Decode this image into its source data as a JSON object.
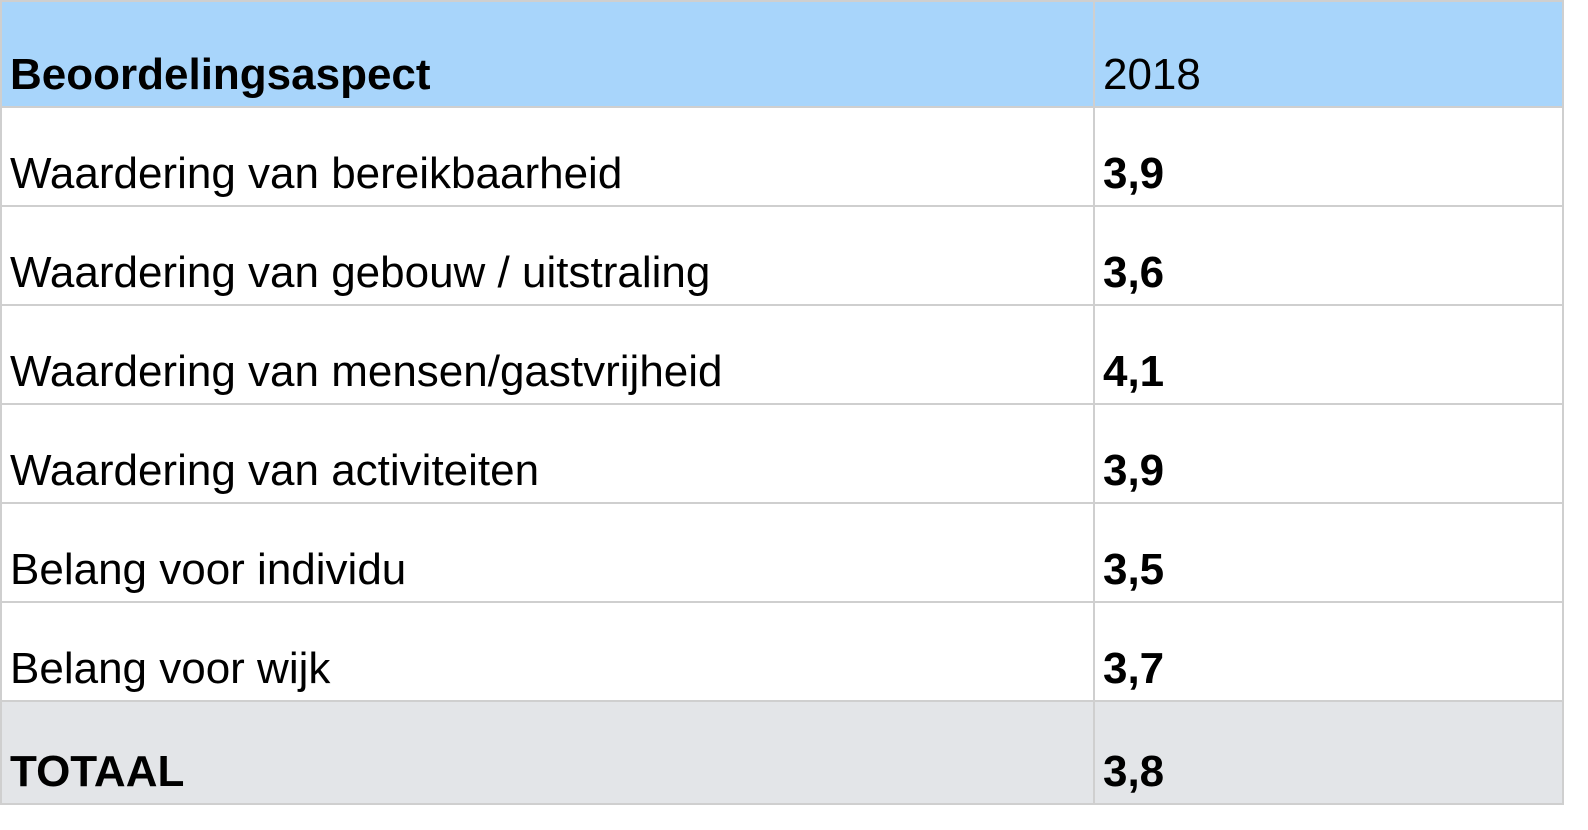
{
  "table": {
    "header": {
      "label": "Beoordelingsaspect",
      "value": "2018"
    },
    "rows": [
      {
        "label": "Waardering van bereikbaarheid",
        "value": "3,9"
      },
      {
        "label": "Waardering van gebouw / uitstraling",
        "value": "3,6"
      },
      {
        "label": "Waardering van mensen/gastvrijheid",
        "value": "4,1"
      },
      {
        "label": "Waardering van activiteiten",
        "value": "3,9"
      },
      {
        "label": "Belang voor individu",
        "value": "3,5"
      },
      {
        "label": "Belang voor wijk",
        "value": "3,7"
      }
    ],
    "total": {
      "label": "TOTAAL",
      "value": "3,8"
    }
  },
  "colors": {
    "header_background": "#a8d5fb",
    "total_background": "#e3e5e8",
    "border": "#cfcfcf"
  }
}
